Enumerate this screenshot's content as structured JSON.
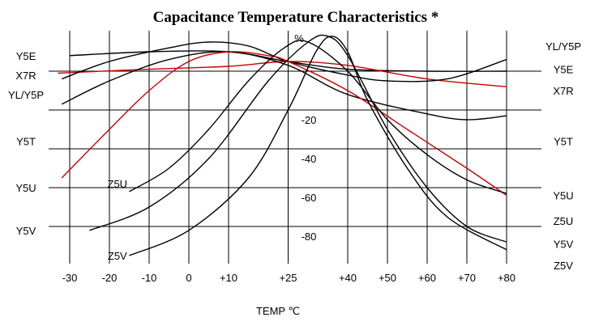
{
  "chart_data": {
    "type": "line",
    "title": "Capacitance Temperature Characteristics *",
    "xlabel": "TEMP ℃",
    "ylabel": "%",
    "xlim": [
      -33,
      85
    ],
    "ylim": [
      -100,
      15
    ],
    "x_ticks": [
      -30,
      -20,
      -10,
      0,
      10,
      25,
      40,
      50,
      60,
      70,
      80
    ],
    "x_tick_labels": [
      "-30",
      "-20",
      "-10",
      "0",
      "+10",
      "+25",
      "+40",
      "+50",
      "+60",
      "+70",
      "+80"
    ],
    "y_ticks": [
      -20,
      -40,
      -60,
      -80
    ],
    "y_tick_labels": [
      "-20",
      "-40",
      "-60",
      "-80"
    ],
    "grid": true,
    "series": [
      {
        "name": "Y5E",
        "color": "#000000",
        "points": [
          [
            -30,
            8
          ],
          [
            -10,
            10
          ],
          [
            10,
            10
          ],
          [
            25,
            5
          ],
          [
            40,
            1
          ],
          [
            60,
            0
          ],
          [
            80,
            0
          ]
        ]
      },
      {
        "name": "X7R",
        "color": "#cc0000",
        "points": [
          [
            -33,
            -1
          ],
          [
            -10,
            1
          ],
          [
            10,
            2.5
          ],
          [
            25,
            5
          ],
          [
            40,
            3
          ],
          [
            60,
            -4
          ],
          [
            80,
            -8
          ]
        ]
      },
      {
        "name": "YL/Y5P",
        "color": "#000000",
        "points": [
          [
            -32,
            -4
          ],
          [
            -20,
            5
          ],
          [
            -5,
            12
          ],
          [
            5,
            15
          ],
          [
            15,
            13
          ],
          [
            25,
            5
          ],
          [
            40,
            -2
          ],
          [
            50,
            -5
          ],
          [
            65,
            -4
          ],
          [
            80,
            6
          ]
        ]
      },
      {
        "name": "Y5T",
        "color": "#000000",
        "points": [
          [
            -32,
            -17
          ],
          [
            -20,
            -5
          ],
          [
            -5,
            6
          ],
          [
            10,
            10
          ],
          [
            25,
            3
          ],
          [
            40,
            -12
          ],
          [
            60,
            -22
          ],
          [
            70,
            -25
          ],
          [
            80,
            -23
          ]
        ]
      },
      {
        "name": "Y5U",
        "color": "#cc0000",
        "points": [
          [
            -32,
            -55
          ],
          [
            -20,
            -30
          ],
          [
            -10,
            -10
          ],
          [
            0,
            5
          ],
          [
            10,
            10
          ],
          [
            20,
            8
          ],
          [
            25,
            5
          ],
          [
            40,
            -10
          ],
          [
            55,
            -30
          ],
          [
            70,
            -50
          ],
          [
            80,
            -64
          ]
        ]
      },
      {
        "name": "Z5U",
        "color": "#000000",
        "points": [
          [
            -15,
            -62
          ],
          [
            -5,
            -50
          ],
          [
            5,
            -30
          ],
          [
            15,
            -5
          ],
          [
            24,
            12
          ],
          [
            30,
            15
          ],
          [
            40,
            0
          ],
          [
            50,
            -25
          ],
          [
            60,
            -43
          ],
          [
            70,
            -56
          ],
          [
            80,
            -63
          ]
        ]
      },
      {
        "name": "Y5V",
        "color": "#000000",
        "points": [
          [
            -25,
            -82
          ],
          [
            -10,
            -70
          ],
          [
            5,
            -45
          ],
          [
            20,
            -5
          ],
          [
            30,
            15
          ],
          [
            35,
            18
          ],
          [
            40,
            8
          ],
          [
            50,
            -30
          ],
          [
            60,
            -60
          ],
          [
            70,
            -80
          ],
          [
            80,
            -88
          ]
        ]
      },
      {
        "name": "Z5V",
        "color": "#000000",
        "points": [
          [
            -15,
            -95
          ],
          [
            0,
            -82
          ],
          [
            15,
            -55
          ],
          [
            25,
            -20
          ],
          [
            32,
            10
          ],
          [
            36,
            18
          ],
          [
            40,
            10
          ],
          [
            45,
            -15
          ],
          [
            55,
            -50
          ],
          [
            65,
            -75
          ],
          [
            80,
            -92
          ]
        ]
      }
    ],
    "series_labels": [
      {
        "text": "Y5E",
        "side": "left",
        "y": 8
      },
      {
        "text": "X7R",
        "side": "left",
        "y": -2
      },
      {
        "text": "YL/Y5P",
        "side": "left",
        "y": -12
      },
      {
        "text": "Y5T",
        "side": "left",
        "y": -36
      },
      {
        "text": "Y5U",
        "side": "left",
        "y": -60
      },
      {
        "text": "Y5V",
        "side": "left",
        "y": -82
      },
      {
        "text": "Z5U",
        "side": "inner",
        "x": -18,
        "y": -58
      },
      {
        "text": "Z5V",
        "side": "inner",
        "x": -18,
        "y": -95
      },
      {
        "text": "YL/Y5P",
        "side": "right",
        "y": 13
      },
      {
        "text": "Y5E",
        "side": "right",
        "y": 1
      },
      {
        "text": "X7R",
        "side": "right",
        "y": -10
      },
      {
        "text": "Y5T",
        "side": "right",
        "y": -36
      },
      {
        "text": "Y5U",
        "side": "right",
        "y": -64
      },
      {
        "text": "Z5U",
        "side": "right",
        "y": -77
      },
      {
        "text": "Y5V",
        "side": "right",
        "y": -89
      },
      {
        "text": "Z5V",
        "side": "right",
        "y": -100
      }
    ]
  }
}
